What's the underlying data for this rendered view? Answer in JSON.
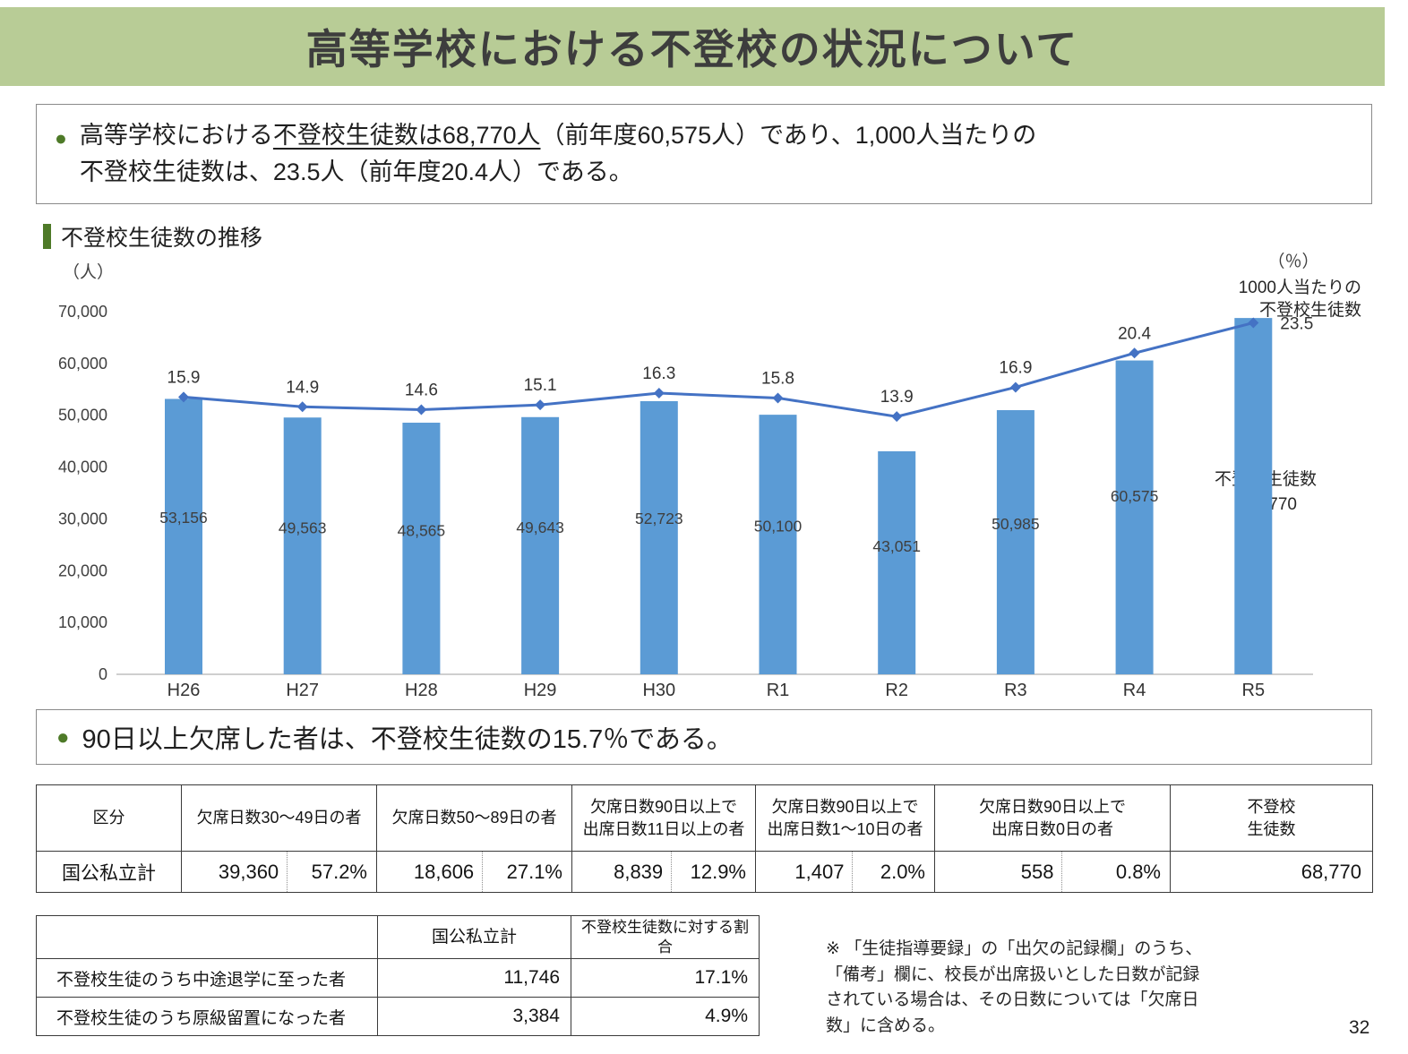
{
  "page": {
    "title": "高等学校における不登校の状況について",
    "page_number": "32"
  },
  "summary_box1": {
    "line1_pre": "高等学校における",
    "line1_underline": "不登校生徒数は68,770人",
    "line1_post": "（前年度60,575人）であり、1,000人当たりの",
    "line2": "不登校生徒数は、23.5人（前年度20.4人）である。"
  },
  "chart_data": {
    "type": "bar+line",
    "title": "不登校生徒数の推移",
    "categories": [
      "H26",
      "H27",
      "H28",
      "H29",
      "H30",
      "R1",
      "R2",
      "R3",
      "R4",
      "R5"
    ],
    "series": [
      {
        "name": "不登校生徒数",
        "type": "bar",
        "values": [
          53156,
          49563,
          48565,
          49643,
          52723,
          50100,
          43051,
          50985,
          60575,
          68770
        ]
      },
      {
        "name": "1000人当たりの不登校生徒数",
        "type": "line",
        "values": [
          15.9,
          14.9,
          14.6,
          15.1,
          16.3,
          15.8,
          13.9,
          16.9,
          20.4,
          23.5
        ]
      }
    ],
    "bar_labels": [
      "53,156",
      "49,563",
      "48,565",
      "49,643",
      "52,723",
      "50,100",
      "43,051",
      "50,985",
      "60,575",
      "68,770"
    ],
    "line_labels": [
      "15.9",
      "14.9",
      "14.6",
      "15.1",
      "16.3",
      "15.8",
      "13.9",
      "16.9",
      "20.4",
      "23.5"
    ],
    "y_axis": {
      "unit_label": "（人）",
      "min": 0,
      "max": 70000,
      "ticks": [
        "70,000",
        "60,000",
        "50,000",
        "40,000",
        "30,000",
        "20,000",
        "10,000",
        "0"
      ]
    },
    "secondary_axis": {
      "unit_label": "（％）"
    },
    "annotations": {
      "line_series_label_l1": "1000人当たりの",
      "line_series_label_l2": "不登校生徒数",
      "bar_series_label": "不登校生徒数",
      "bar_last_value": "68,770"
    },
    "legend_position": "none",
    "grid": false,
    "colors": {
      "bar": "#5b9bd5",
      "line": "#4472c4"
    }
  },
  "summary_box2": {
    "text": "90日以上欠席した者は、不登校生徒数の15.7％である。"
  },
  "table1": {
    "headers": [
      "区分",
      "欠席日数30～49日の者",
      "欠席日数50～89日の者",
      "欠席日数90日以上で\n出席日数11日以上の者",
      "欠席日数90日以上で\n出席日数1～10日の者",
      "欠席日数90日以上で\n出席日数0日の者",
      "不登校\n生徒数"
    ],
    "row": {
      "label": "国公私立計",
      "cells": [
        {
          "count": "39,360",
          "pct": "57.2%"
        },
        {
          "count": "18,606",
          "pct": "27.1%"
        },
        {
          "count": "8,839",
          "pct": "12.9%"
        },
        {
          "count": "1,407",
          "pct": "2.0%"
        },
        {
          "count": "558",
          "pct": "0.8%"
        }
      ],
      "total": "68,770"
    }
  },
  "table2": {
    "col2_header": "国公私立計",
    "col3_header": "不登校生徒数に対する割合",
    "rows": [
      {
        "label": "不登校生徒のうち中途退学に至った者",
        "value": "11,746",
        "ratio": "17.1%"
      },
      {
        "label": "不登校生徒のうち原級留置になった者",
        "value": "3,384",
        "ratio": "4.9%"
      }
    ]
  },
  "note": {
    "text": "※ 「生徒指導要録」の「出欠の記録欄」のうち、「備考」欄に、校長が出席扱いとした日数が記録されている場合は、その日数については「欠席日数」に含める。"
  }
}
